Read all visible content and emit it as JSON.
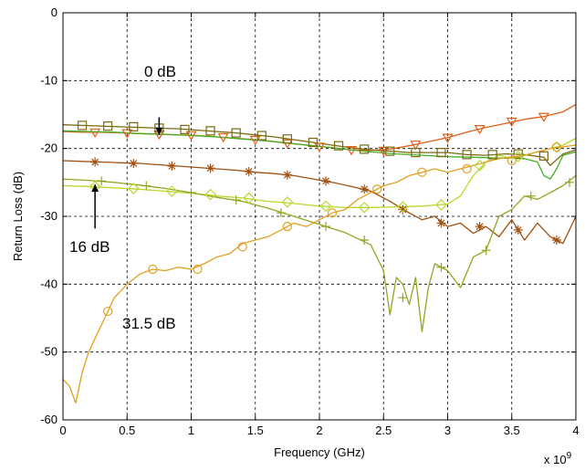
{
  "chart_data": {
    "type": "line",
    "title": "",
    "xlabel": "Frequency (GHz)",
    "ylabel": "Return Loss (dB)",
    "x_multiplier_label": "x 10",
    "x_multiplier_exp": "9",
    "xlim": [
      0,
      4
    ],
    "ylim": [
      -60,
      0
    ],
    "xticks": [
      0,
      0.5,
      1,
      1.5,
      2,
      2.5,
      3,
      3.5,
      4
    ],
    "xtick_labels": [
      "0",
      "0.5",
      "1",
      "1.5",
      "2",
      "2.5",
      "3",
      "3.5",
      "4"
    ],
    "yticks": [
      0,
      -10,
      -20,
      -30,
      -40,
      -50,
      -60
    ],
    "ytick_labels": [
      "0",
      "-10",
      "-20",
      "-30",
      "-40",
      "-50",
      "-60"
    ],
    "grid": true,
    "legend": "none",
    "series": [
      {
        "color": "#e06018",
        "marker": "triangle-down",
        "x": [
          0,
          0.15,
          0.3,
          0.45,
          0.6,
          0.75,
          0.9,
          1.05,
          1.2,
          1.35,
          1.5,
          1.65,
          1.8,
          1.95,
          2.1,
          2.25,
          2.4,
          2.55,
          2.7,
          2.85,
          3.0,
          3.15,
          3.3,
          3.45,
          3.6,
          3.75,
          3.9,
          4.0
        ],
        "y": [
          -17.5,
          -17.6,
          -17.6,
          -17.7,
          -17.8,
          -17.9,
          -18.0,
          -18.1,
          -18.3,
          -18.5,
          -18.7,
          -19.0,
          -19.3,
          -19.6,
          -19.9,
          -20.2,
          -20.3,
          -20.1,
          -19.6,
          -19.0,
          -18.4,
          -17.6,
          -16.9,
          -16.3,
          -15.7,
          -15.3,
          -14.6,
          -13.5
        ],
        "marker_x": [
          0.25,
          0.5,
          0.75,
          1.0,
          1.25,
          1.5,
          1.75,
          2.0,
          2.25,
          2.5,
          2.75,
          3.0,
          3.25,
          3.5,
          3.75
        ],
        "marker_y": [
          -17.6,
          -17.7,
          -17.9,
          -18.0,
          -18.3,
          -18.7,
          -19.2,
          -19.7,
          -20.2,
          -20.3,
          -19.4,
          -18.4,
          -17.1,
          -16.0,
          -15.3
        ]
      },
      {
        "color": "#7a6a10",
        "marker": "square",
        "x": [
          0,
          0.15,
          0.3,
          0.45,
          0.6,
          0.75,
          0.9,
          1.05,
          1.2,
          1.35,
          1.5,
          1.65,
          1.8,
          1.95,
          2.1,
          2.25,
          2.4,
          2.55,
          2.7,
          2.85,
          3.0,
          3.15,
          3.3,
          3.45,
          3.6,
          3.75,
          3.8,
          3.9,
          4.0
        ],
        "y": [
          -16.5,
          -16.6,
          -16.7,
          -16.8,
          -16.9,
          -17.0,
          -17.1,
          -17.3,
          -17.5,
          -17.7,
          -18.0,
          -18.3,
          -18.7,
          -19.1,
          -19.5,
          -19.9,
          -20.2,
          -20.4,
          -20.6,
          -20.6,
          -20.6,
          -20.9,
          -21.0,
          -20.8,
          -20.9,
          -21.3,
          -22.5,
          -20.8,
          -20.2
        ],
        "marker_x": [
          0.15,
          0.35,
          0.55,
          0.75,
          0.95,
          1.15,
          1.35,
          1.55,
          1.75,
          1.95,
          2.15,
          2.35,
          2.55,
          2.75,
          2.95,
          3.15,
          3.35,
          3.55,
          3.75
        ],
        "marker_y": [
          -16.6,
          -16.7,
          -16.8,
          -17.0,
          -17.2,
          -17.4,
          -17.7,
          -18.1,
          -18.6,
          -19.1,
          -19.6,
          -20.1,
          -20.4,
          -20.6,
          -20.6,
          -20.9,
          -20.9,
          -20.8,
          -21.1
        ]
      },
      {
        "color": "#40b020",
        "marker": "none",
        "x": [
          0,
          0.2,
          0.4,
          0.6,
          0.8,
          1.0,
          1.2,
          1.4,
          1.6,
          1.8,
          2.0,
          2.2,
          2.4,
          2.6,
          2.8,
          3.0,
          3.2,
          3.4,
          3.6,
          3.7,
          3.75,
          3.8,
          3.85,
          3.9,
          4.0
        ],
        "y": [
          -17.4,
          -17.5,
          -17.6,
          -17.8,
          -17.9,
          -18.1,
          -18.3,
          -18.6,
          -18.9,
          -19.3,
          -19.7,
          -20.1,
          -20.5,
          -20.8,
          -21.0,
          -21.2,
          -21.3,
          -21.4,
          -21.5,
          -22.0,
          -24.0,
          -24.5,
          -23.0,
          -21.0,
          -20.5
        ]
      },
      {
        "color": "#a05010",
        "marker": "star",
        "x": [
          0,
          0.15,
          0.3,
          0.45,
          0.6,
          0.75,
          0.9,
          1.05,
          1.2,
          1.35,
          1.5,
          1.65,
          1.8,
          1.95,
          2.1,
          2.25,
          2.4,
          2.55,
          2.7,
          2.8,
          2.9,
          3.0,
          3.1,
          3.2,
          3.3,
          3.4,
          3.5,
          3.6,
          3.7,
          3.8,
          3.9,
          4.0
        ],
        "y": [
          -21.8,
          -21.9,
          -22.0,
          -22.1,
          -22.2,
          -22.4,
          -22.6,
          -22.8,
          -23.0,
          -23.2,
          -23.5,
          -23.7,
          -24.0,
          -24.5,
          -25.0,
          -25.6,
          -26.3,
          -27.8,
          -29.5,
          -30.5,
          -30.0,
          -31.5,
          -31.0,
          -32.5,
          -31.5,
          -33.0,
          -30.5,
          -33.5,
          -31.0,
          -33.0,
          -34.0,
          -30.0
        ],
        "marker_x": [
          0.25,
          0.55,
          0.85,
          1.15,
          1.45,
          1.75,
          2.05,
          2.35,
          2.65,
          2.95,
          3.25,
          3.55,
          3.85
        ],
        "marker_y": [
          -22.0,
          -22.2,
          -22.6,
          -22.9,
          -23.4,
          -23.9,
          -24.8,
          -26.0,
          -29.0,
          -31.0,
          -31.5,
          -32.0,
          -33.5
        ]
      },
      {
        "color": "#b8d830",
        "marker": "diamond",
        "x": [
          0,
          0.2,
          0.4,
          0.6,
          0.8,
          1.0,
          1.2,
          1.4,
          1.6,
          1.8,
          2.0,
          2.2,
          2.4,
          2.6,
          2.8,
          3.0,
          3.1,
          3.2,
          3.3,
          3.4,
          3.5,
          3.6,
          3.7,
          3.8,
          3.9,
          4.0
        ],
        "y": [
          -25.5,
          -25.6,
          -25.8,
          -26.0,
          -26.3,
          -26.6,
          -27.0,
          -27.3,
          -27.8,
          -28.1,
          -28.5,
          -28.7,
          -28.7,
          -28.6,
          -28.5,
          -28.2,
          -27.0,
          -24.0,
          -22.0,
          -21.0,
          -21.5,
          -21.0,
          -20.5,
          -20.0,
          -19.5,
          -18.5
        ],
        "marker_x": [
          0.25,
          0.55,
          0.85,
          1.15,
          1.45,
          1.75,
          2.05,
          2.35,
          2.65,
          2.95,
          3.25,
          3.55,
          3.85
        ],
        "marker_y": [
          -25.6,
          -25.9,
          -26.3,
          -26.8,
          -27.3,
          -27.9,
          -28.5,
          -28.7,
          -28.6,
          -28.3,
          -22.5,
          -21.2,
          -19.8
        ]
      },
      {
        "color": "#90a820",
        "marker": "plus",
        "x": [
          0,
          0.2,
          0.4,
          0.6,
          0.8,
          1.0,
          1.2,
          1.4,
          1.6,
          1.8,
          2.0,
          2.2,
          2.4,
          2.5,
          2.55,
          2.6,
          2.65,
          2.7,
          2.75,
          2.8,
          2.85,
          2.9,
          3.0,
          3.1,
          3.2,
          3.3,
          3.4,
          3.5,
          3.6,
          3.7,
          3.8,
          3.9,
          4.0
        ],
        "y": [
          -24.5,
          -24.7,
          -25.0,
          -25.4,
          -25.9,
          -26.5,
          -27.2,
          -27.8,
          -28.8,
          -30.0,
          -31.2,
          -32.4,
          -34.2,
          -38.0,
          -44.5,
          -39.0,
          -40.0,
          -43.0,
          -39.0,
          -47.0,
          -40.5,
          -37.0,
          -38.0,
          -40.5,
          -36.0,
          -35.0,
          -30.0,
          -29.0,
          -27.0,
          -27.5,
          -26.5,
          -25.5,
          -24.0
        ],
        "marker_x": [
          0.3,
          0.65,
          1.0,
          1.35,
          1.7,
          2.05,
          2.35,
          2.65,
          2.95,
          3.3,
          3.65,
          3.95
        ],
        "marker_y": [
          -24.8,
          -25.5,
          -26.5,
          -27.6,
          -29.5,
          -31.5,
          -33.5,
          -42.0,
          -37.5,
          -35.0,
          -27.0,
          -25.0
        ]
      },
      {
        "color": "#e0a020",
        "marker": "circle",
        "x": [
          0,
          0.05,
          0.1,
          0.15,
          0.2,
          0.25,
          0.3,
          0.35,
          0.4,
          0.45,
          0.5,
          0.6,
          0.7,
          0.8,
          0.9,
          1.0,
          1.1,
          1.2,
          1.3,
          1.4,
          1.5,
          1.6,
          1.7,
          1.8,
          1.9,
          2.0,
          2.1,
          2.2,
          2.3,
          2.4,
          2.5,
          2.6,
          2.7,
          2.8,
          2.9,
          3.0,
          3.2,
          3.4,
          3.6,
          3.8,
          4.0
        ],
        "y": [
          -54.0,
          -55.0,
          -57.5,
          -53.0,
          -50.0,
          -48.0,
          -46.0,
          -44.0,
          -42.0,
          -41.0,
          -40.0,
          -38.5,
          -37.8,
          -38.0,
          -37.5,
          -37.8,
          -37.0,
          -36.0,
          -35.5,
          -34.0,
          -33.5,
          -33.0,
          -32.0,
          -31.0,
          -31.5,
          -30.5,
          -29.5,
          -29.0,
          -27.5,
          -26.5,
          -25.5,
          -25.0,
          -24.0,
          -23.5,
          -23.0,
          -23.5,
          -22.5,
          -21.5,
          -21.0,
          -20.0,
          -19.5
        ],
        "marker_x": [
          0.35,
          0.7,
          1.05,
          1.4,
          1.75,
          2.1,
          2.45,
          2.8,
          3.15,
          3.5,
          3.85
        ],
        "marker_y": [
          -44.0,
          -37.8,
          -37.8,
          -34.5,
          -31.5,
          -29.5,
          -26.0,
          -23.5,
          -23.0,
          -21.8,
          -19.8
        ]
      }
    ],
    "annotations": [
      {
        "text": "0 dB",
        "arrow_to": [
          0.75,
          -18.0
        ],
        "arrow_from": [
          0.75,
          -15.4
        ]
      },
      {
        "text": "16 dB",
        "arrow_to": [
          0.25,
          -25.3
        ],
        "arrow_from": [
          0.25,
          -31.8
        ]
      },
      {
        "text": "31.5 dB"
      }
    ]
  }
}
